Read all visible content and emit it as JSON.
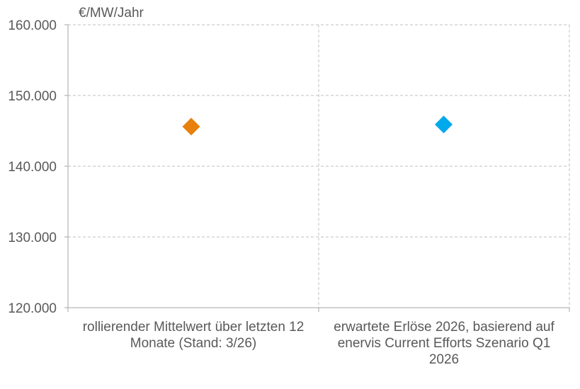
{
  "chart_data": {
    "type": "scatter",
    "title": "",
    "ylabel": "€/MW/Jahr",
    "xlabel": "",
    "ylim": [
      120000,
      160000
    ],
    "yticks": [
      120000,
      130000,
      140000,
      150000,
      160000
    ],
    "ytick_labels": [
      "120.000",
      "130.000",
      "140.000",
      "150.000",
      "160.000"
    ],
    "categories": [
      [
        "rollierender Mittelwert über letzten 12",
        "Monate (Stand: 3/26)"
      ],
      [
        "erwartete Erlöse 2026, basierend auf",
        "enervis Current Efforts Szenario Q1",
        "2026"
      ]
    ],
    "points": [
      {
        "category_index": 0,
        "value": 145600,
        "color": "#E8800E",
        "marker": "diamond"
      },
      {
        "category_index": 1,
        "value": 145900,
        "color": "#00A9EB",
        "marker": "diamond"
      }
    ],
    "grid": true,
    "grid_style": "dashed",
    "grid_color": "#BFBFBF",
    "axis_color": "#A6A6A6",
    "text_color": "#595959",
    "legend": "none"
  }
}
